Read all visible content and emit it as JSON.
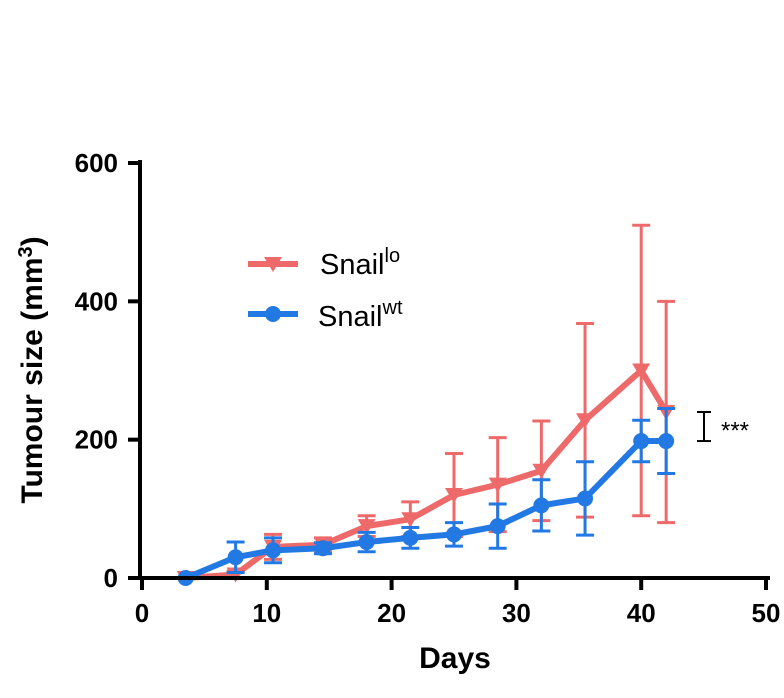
{
  "chart_data": {
    "type": "line",
    "xlabel": "Days",
    "ylabel_main": "Tumour size (mm",
    "ylabel_sup": "3",
    "ylabel_close": ")",
    "xlim": [
      0,
      50
    ],
    "ylim": [
      0,
      600
    ],
    "xticks": [
      0,
      10,
      20,
      30,
      40,
      50
    ],
    "yticks": [
      0,
      200,
      400,
      600
    ],
    "grid": false,
    "legend_position": "upper-left",
    "series": [
      {
        "name": "Snaillo",
        "label_base": "Snail",
        "label_sup": "lo",
        "color": "#EE6A6A",
        "marker": "triangle-down",
        "x": [
          3.5,
          7.5,
          10.5,
          14.5,
          18,
          21.5,
          25,
          28.5,
          32,
          35.5,
          40,
          42
        ],
        "y": [
          0,
          5,
          45,
          48,
          75,
          85,
          120,
          135,
          155,
          228,
          300,
          240
        ],
        "err": [
          0,
          5,
          18,
          10,
          15,
          25,
          60,
          68,
          72,
          140,
          210,
          160
        ]
      },
      {
        "name": "Snailwt",
        "label_base": "Snail",
        "label_sup": "wt",
        "color": "#2379E3",
        "marker": "circle",
        "x": [
          3.5,
          7.5,
          10.5,
          14.5,
          18,
          21.5,
          25,
          28.5,
          32,
          35.5,
          40,
          42
        ],
        "y": [
          0,
          30,
          40,
          43,
          52,
          58,
          63,
          75,
          105,
          115,
          198,
          198
        ],
        "err": [
          0,
          22,
          18,
          8,
          14,
          15,
          17,
          32,
          37,
          53,
          30,
          47
        ]
      }
    ],
    "annotation": {
      "text": "***",
      "range": [
        198,
        240
      ]
    }
  }
}
